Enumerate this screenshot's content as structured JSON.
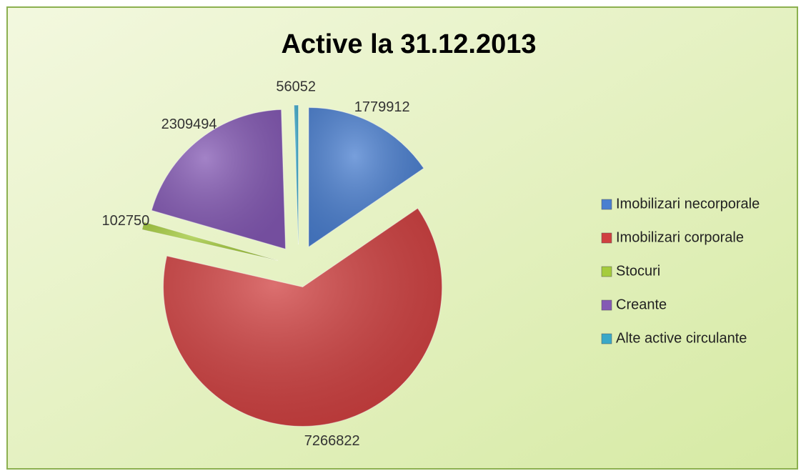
{
  "chart_data": {
    "type": "pie",
    "title": "Active la 31.12.2013",
    "categories": [
      "Imobilizari necorporale",
      "Imobilizari corporale",
      "Stocuri",
      "Creante",
      "Alte active circulante"
    ],
    "values": [
      1779912,
      7266822,
      102750,
      2309494,
      56052
    ],
    "colors": [
      "#4a7fd0",
      "#d04040",
      "#a5cc3c",
      "#8459b4",
      "#3aa8c8"
    ],
    "legend": "right"
  }
}
